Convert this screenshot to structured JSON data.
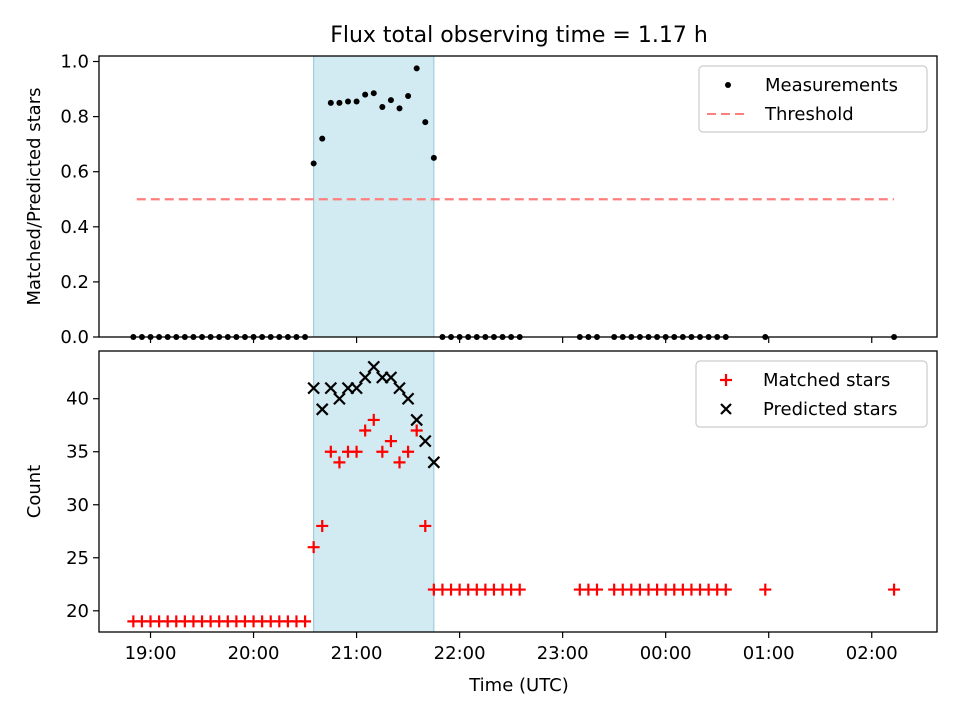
{
  "title": "Flux total observing time = 1.17 h",
  "xlabel": "Time (UTC)",
  "x_ticks": [
    "19:00",
    "20:00",
    "21:00",
    "22:00",
    "23:00",
    "00:00",
    "01:00",
    "02:00"
  ],
  "colors": {
    "measurement": "#000000",
    "threshold": "#ff7f7f",
    "matched": "#ff0000",
    "predicted": "#000000",
    "shade": "#add8e6"
  },
  "chart_data": [
    {
      "type": "scatter",
      "ylabel": "Matched/Predicted stars",
      "xlim": [
        "18:30",
        "02:38"
      ],
      "ylim": [
        0,
        1.02
      ],
      "y_ticks": [
        "0.0",
        "0.2",
        "0.4",
        "0.6",
        "0.8",
        "1.0"
      ],
      "shaded_region": [
        "20:35",
        "21:45"
      ],
      "legend_position": "upper right",
      "legend": [
        "Measurements",
        "Threshold"
      ],
      "threshold": {
        "value": 0.5,
        "x_range": [
          "18:52",
          "02:13"
        ]
      },
      "series": [
        {
          "name": "Measurements",
          "points": [
            [
              "18:50",
              0
            ],
            [
              "18:55",
              0
            ],
            [
              "19:00",
              0
            ],
            [
              "19:05",
              0
            ],
            [
              "19:10",
              0
            ],
            [
              "19:15",
              0
            ],
            [
              "19:20",
              0
            ],
            [
              "19:25",
              0
            ],
            [
              "19:30",
              0
            ],
            [
              "19:35",
              0
            ],
            [
              "19:40",
              0
            ],
            [
              "19:45",
              0
            ],
            [
              "19:50",
              0
            ],
            [
              "19:55",
              0
            ],
            [
              "20:00",
              0
            ],
            [
              "20:05",
              0
            ],
            [
              "20:10",
              0
            ],
            [
              "20:15",
              0
            ],
            [
              "20:20",
              0
            ],
            [
              "20:25",
              0
            ],
            [
              "20:30",
              0
            ],
            [
              "20:35",
              0.63
            ],
            [
              "20:40",
              0.72
            ],
            [
              "20:45",
              0.85
            ],
            [
              "20:50",
              0.85
            ],
            [
              "20:55",
              0.855
            ],
            [
              "21:00",
              0.855
            ],
            [
              "21:05",
              0.88
            ],
            [
              "21:10",
              0.885
            ],
            [
              "21:15",
              0.835
            ],
            [
              "21:20",
              0.86
            ],
            [
              "21:25",
              0.83
            ],
            [
              "21:30",
              0.875
            ],
            [
              "21:35",
              0.975
            ],
            [
              "21:40",
              0.78
            ],
            [
              "21:45",
              0.65
            ],
            [
              "21:50",
              0
            ],
            [
              "21:55",
              0
            ],
            [
              "22:00",
              0
            ],
            [
              "22:05",
              0
            ],
            [
              "22:10",
              0
            ],
            [
              "22:15",
              0
            ],
            [
              "22:20",
              0
            ],
            [
              "22:25",
              0
            ],
            [
              "22:30",
              0
            ],
            [
              "22:35",
              0
            ],
            [
              "23:10",
              0
            ],
            [
              "23:15",
              0
            ],
            [
              "23:20",
              0
            ],
            [
              "23:30",
              0
            ],
            [
              "23:35",
              0
            ],
            [
              "23:40",
              0
            ],
            [
              "23:45",
              0
            ],
            [
              "23:50",
              0
            ],
            [
              "23:55",
              0
            ],
            [
              "00:00",
              0
            ],
            [
              "00:05",
              0
            ],
            [
              "00:10",
              0
            ],
            [
              "00:15",
              0
            ],
            [
              "00:20",
              0
            ],
            [
              "00:25",
              0
            ],
            [
              "00:30",
              0
            ],
            [
              "00:35",
              0
            ],
            [
              "00:58",
              0
            ],
            [
              "02:13",
              0
            ]
          ]
        }
      ]
    },
    {
      "type": "scatter",
      "ylabel": "Count",
      "xlabel": "Time (UTC)",
      "xlim": [
        "18:30",
        "02:38"
      ],
      "ylim": [
        18,
        44.5
      ],
      "y_ticks": [
        "20",
        "25",
        "30",
        "35",
        "40"
      ],
      "shaded_region": [
        "20:35",
        "21:45"
      ],
      "legend_position": "upper right",
      "legend": [
        "Matched stars",
        "Predicted stars"
      ],
      "series": [
        {
          "name": "Matched stars",
          "points": [
            [
              "18:50",
              19
            ],
            [
              "18:55",
              19
            ],
            [
              "19:00",
              19
            ],
            [
              "19:05",
              19
            ],
            [
              "19:10",
              19
            ],
            [
              "19:15",
              19
            ],
            [
              "19:20",
              19
            ],
            [
              "19:25",
              19
            ],
            [
              "19:30",
              19
            ],
            [
              "19:35",
              19
            ],
            [
              "19:40",
              19
            ],
            [
              "19:45",
              19
            ],
            [
              "19:50",
              19
            ],
            [
              "19:55",
              19
            ],
            [
              "20:00",
              19
            ],
            [
              "20:05",
              19
            ],
            [
              "20:10",
              19
            ],
            [
              "20:15",
              19
            ],
            [
              "20:20",
              19
            ],
            [
              "20:25",
              19
            ],
            [
              "20:30",
              19
            ],
            [
              "20:35",
              26
            ],
            [
              "20:40",
              28
            ],
            [
              "20:45",
              35
            ],
            [
              "20:50",
              34
            ],
            [
              "20:55",
              35
            ],
            [
              "21:00",
              35
            ],
            [
              "21:05",
              37
            ],
            [
              "21:10",
              38
            ],
            [
              "21:15",
              35
            ],
            [
              "21:20",
              36
            ],
            [
              "21:25",
              34
            ],
            [
              "21:30",
              35
            ],
            [
              "21:35",
              37
            ],
            [
              "21:40",
              28
            ],
            [
              "21:45",
              22
            ],
            [
              "21:50",
              22
            ],
            [
              "21:55",
              22
            ],
            [
              "22:00",
              22
            ],
            [
              "22:05",
              22
            ],
            [
              "22:10",
              22
            ],
            [
              "22:15",
              22
            ],
            [
              "22:20",
              22
            ],
            [
              "22:25",
              22
            ],
            [
              "22:30",
              22
            ],
            [
              "22:35",
              22
            ],
            [
              "23:10",
              22
            ],
            [
              "23:15",
              22
            ],
            [
              "23:20",
              22
            ],
            [
              "23:30",
              22
            ],
            [
              "23:35",
              22
            ],
            [
              "23:40",
              22
            ],
            [
              "23:45",
              22
            ],
            [
              "23:50",
              22
            ],
            [
              "23:55",
              22
            ],
            [
              "00:00",
              22
            ],
            [
              "00:05",
              22
            ],
            [
              "00:10",
              22
            ],
            [
              "00:15",
              22
            ],
            [
              "00:20",
              22
            ],
            [
              "00:25",
              22
            ],
            [
              "00:30",
              22
            ],
            [
              "00:35",
              22
            ],
            [
              "00:58",
              22
            ],
            [
              "02:13",
              22
            ]
          ]
        },
        {
          "name": "Predicted stars",
          "points": [
            [
              "20:35",
              41
            ],
            [
              "20:40",
              39
            ],
            [
              "20:45",
              41
            ],
            [
              "20:50",
              40
            ],
            [
              "20:55",
              41
            ],
            [
              "21:00",
              41
            ],
            [
              "21:05",
              42
            ],
            [
              "21:10",
              43
            ],
            [
              "21:15",
              42
            ],
            [
              "21:20",
              42
            ],
            [
              "21:25",
              41
            ],
            [
              "21:30",
              40
            ],
            [
              "21:35",
              38
            ],
            [
              "21:40",
              36
            ],
            [
              "21:45",
              34
            ]
          ]
        }
      ]
    }
  ]
}
